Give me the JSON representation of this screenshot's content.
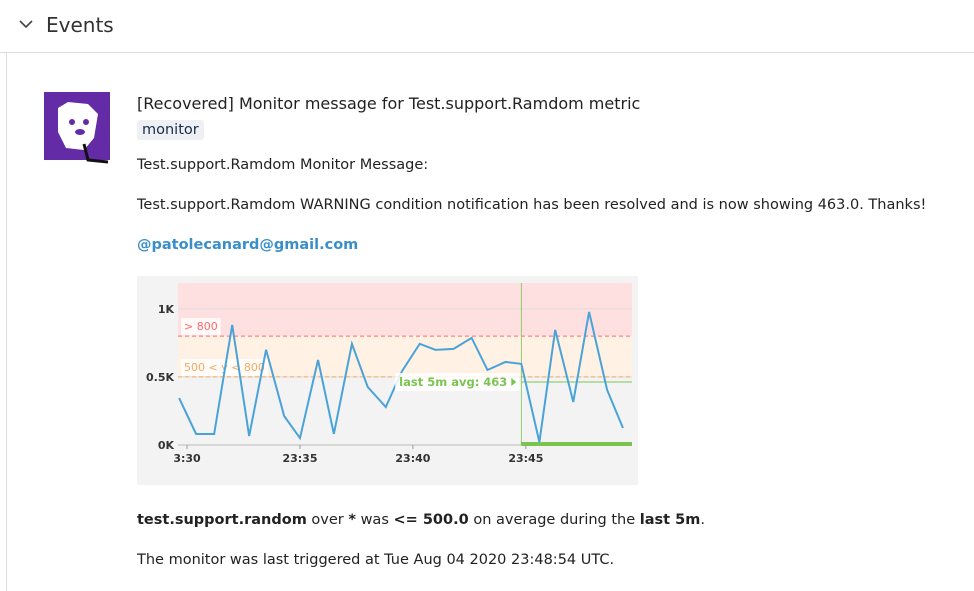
{
  "header": {
    "title": "Events"
  },
  "event": {
    "title": "[Recovered] Monitor message for Test.support.Ramdom metric",
    "tag": "monitor",
    "paragraphs": [
      "Test.support.Ramdom Monitor Message:",
      "Test.support.Ramdom WARNING condition notification has been resolved and is now showing 463.0. Thanks!"
    ],
    "mention": "@patolecanard@gmail.com",
    "summary": [
      "test.support.random",
      " over ",
      "*",
      " was ",
      "<= 500.0",
      " on average during the ",
      "last 5m",
      "."
    ],
    "footer": "The monitor was last triggered at Tue Aug 04 2020 23:48:54 UTC."
  },
  "chart_data": {
    "type": "line",
    "x": [
      29.65,
      30.4,
      31.2,
      32.0,
      32.75,
      33.5,
      34.3,
      35.0,
      35.8,
      36.5,
      37.3,
      38.0,
      38.8,
      39.5,
      40.3,
      41.0,
      41.8,
      42.6,
      43.3,
      44.1,
      44.8,
      45.6,
      46.3,
      47.1,
      47.8,
      48.6,
      49.3
    ],
    "values": [
      345,
      81,
      81,
      882,
      66,
      700,
      213,
      51,
      625,
      81,
      743,
      426,
      279,
      537,
      743,
      699,
      706,
      787,
      551,
      610,
      596,
      22,
      846,
      316,
      978,
      404,
      125
    ],
    "color": "#4aa3d8",
    "xlim": [
      29.6,
      49.7
    ],
    "ylim": [
      0,
      1190
    ],
    "xticks": [
      {
        "value": 30,
        "label": "3:30"
      },
      {
        "value": 35,
        "label": "23:35"
      },
      {
        "value": 40,
        "label": "23:40"
      },
      {
        "value": 45,
        "label": "23:45"
      }
    ],
    "yticks": [
      {
        "value": 0,
        "label": "0K"
      },
      {
        "value": 500,
        "label": "0.5K"
      },
      {
        "value": 1000,
        "label": "1K"
      }
    ],
    "grid": true,
    "thresholds": [
      {
        "value": 800,
        "label": "> 800",
        "color": "#ff6b6b",
        "band": "#ffe0e0"
      },
      {
        "value": 500,
        "label": "500 < y < 800",
        "color": "#f5a85e",
        "band": "#fff1e3"
      }
    ],
    "window_start": 44.8,
    "avg": 463,
    "avg_label": "last 5m avg: 463",
    "avg_color": "#7cc451"
  }
}
